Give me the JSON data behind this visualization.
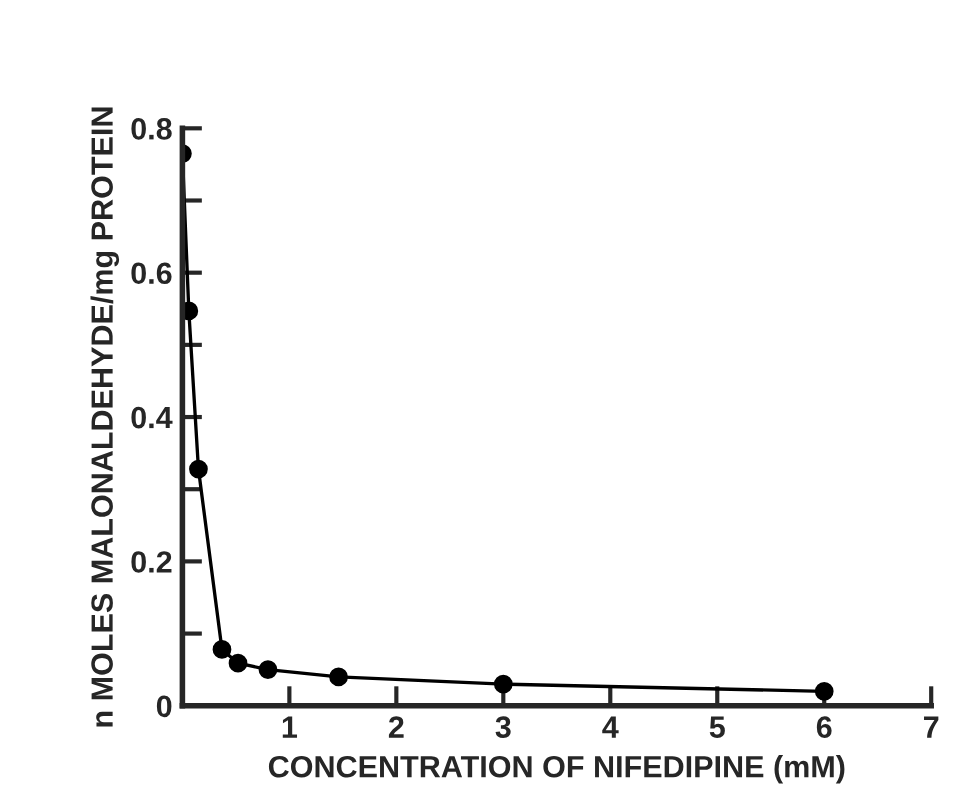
{
  "chart_data": {
    "type": "line",
    "xlabel": "CONCENTRATION OF NIFEDIPINE (mM)",
    "ylabel": "n MOLES MALONALDEHYDE/mg PROTEIN",
    "x": [
      0,
      0.06,
      0.15,
      0.37,
      0.52,
      0.8,
      1.46,
      3,
      6
    ],
    "series": [
      {
        "color": "#000000",
        "values": [
          0.765,
          0.547,
          0.328,
          0.078,
          0.059,
          0.05,
          0.04,
          0.03,
          0.02
        ]
      }
    ],
    "xlim": [
      0,
      7
    ],
    "ylim": [
      0,
      0.8
    ],
    "xticks": [
      1,
      2,
      3,
      4,
      5,
      6,
      7
    ],
    "yticks": [
      0,
      {
        "value": 0.1,
        "label": null
      },
      0.2,
      {
        "value": 0.3,
        "label": null
      },
      0.4,
      {
        "value": 0.5,
        "label": null
      },
      0.6,
      {
        "value": 0.7,
        "label": null
      },
      0.8
    ],
    "marker": "circle",
    "line_style": "solid",
    "grid": false,
    "legend": false
  }
}
